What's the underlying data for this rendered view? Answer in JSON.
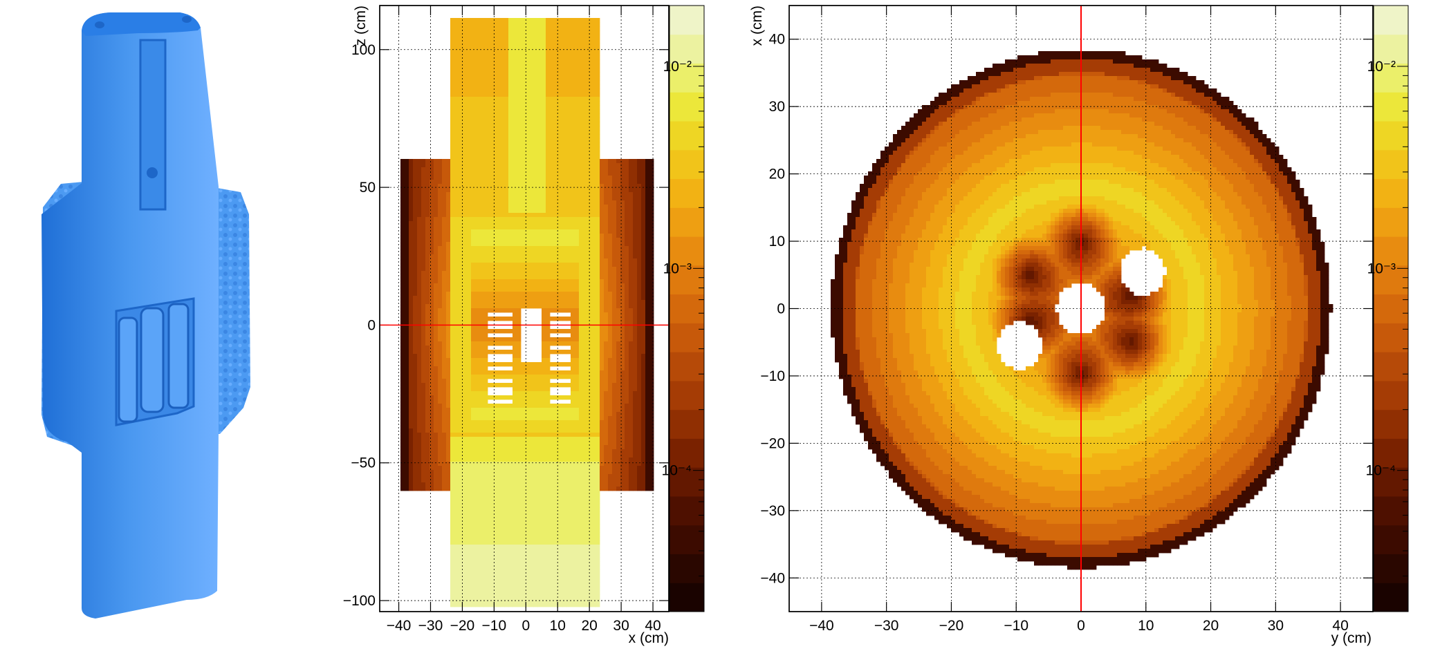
{
  "colors": {
    "model_blue": "#4a98f0",
    "model_blue_light": "#6fb0ff",
    "model_blue_dark": "#1f6fd6",
    "marker_line": "#ff0000",
    "palette": [
      "#1a0300",
      "#2a0700",
      "#3c0b00",
      "#4e1000",
      "#631800",
      "#7a2200",
      "#902f02",
      "#a53c05",
      "#b64a08",
      "#c7590a",
      "#d4690c",
      "#df7a0e",
      "#e88c10",
      "#ee9f12",
      "#f2b214",
      "#f1c41a",
      "#eed624",
      "#ece73a",
      "#ebef6a",
      "#ecf2a0",
      "#eff4c8"
    ]
  },
  "panels": {
    "model": {
      "icon": "detector-3d-model-icon"
    }
  },
  "chart_data": [
    {
      "type": "heatmap",
      "title": "",
      "xlabel": "x (cm)",
      "ylabel": "z (cm)",
      "xlim": [
        -46,
        45
      ],
      "ylim": [
        -104,
        116
      ],
      "grid": true,
      "log_scale_color": true,
      "x_ticks": [
        -40,
        -30,
        -20,
        -10,
        0,
        10,
        20,
        30,
        40
      ],
      "y_ticks": [
        -100,
        -50,
        0,
        50,
        100
      ],
      "x_tick_labels": [
        "−40",
        "−30",
        "−20",
        "−10",
        "0",
        "10",
        "20",
        "30",
        "40"
      ],
      "y_tick_labels": [
        "−100",
        "−50",
        "0",
        "50",
        "100"
      ],
      "colorbar": {
        "min": 2e-05,
        "max": 0.02,
        "labels": [
          "10⁻²",
          "10⁻³",
          "10⁻⁴"
        ],
        "label_values": [
          0.01,
          0.001,
          0.0001
        ]
      },
      "marker_line": {
        "axis": "horizontal",
        "value": 0
      }
    },
    {
      "type": "heatmap",
      "title": "",
      "xlabel": "y (cm)",
      "ylabel": "x (cm)",
      "xlim": [
        -45,
        45
      ],
      "ylim": [
        -45,
        45
      ],
      "grid": true,
      "log_scale_color": true,
      "x_ticks": [
        -40,
        -30,
        -20,
        -10,
        0,
        10,
        20,
        30,
        40
      ],
      "y_ticks": [
        -40,
        -30,
        -20,
        -10,
        0,
        10,
        20,
        30,
        40
      ],
      "x_tick_labels": [
        "−40",
        "−30",
        "−20",
        "−10",
        "0",
        "10",
        "20",
        "30",
        "40"
      ],
      "y_tick_labels": [
        "−40",
        "−30",
        "−20",
        "−10",
        "0",
        "10",
        "20",
        "30",
        "40"
      ],
      "disk_radius": 38.5,
      "holes": [
        {
          "y": 0,
          "x": 0,
          "r": 3.8
        },
        {
          "y": 9.5,
          "x": 5.5,
          "r": 3.5
        },
        {
          "y": -9.5,
          "x": -5.5,
          "r": 3.5
        }
      ],
      "colorbar": {
        "min": 2e-05,
        "max": 0.02,
        "labels": [
          "10⁻²",
          "10⁻³",
          "10⁻⁴"
        ],
        "label_values": [
          0.01,
          0.001,
          0.0001
        ]
      },
      "marker_line": {
        "axis": "vertical",
        "value": 0
      }
    }
  ]
}
